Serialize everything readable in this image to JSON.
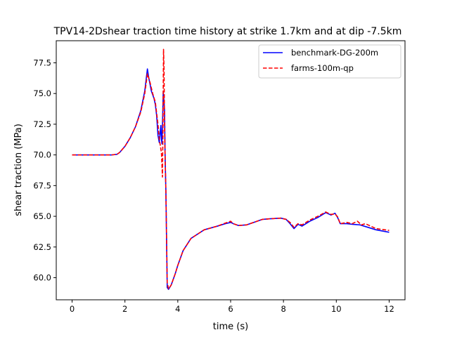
{
  "chart_data": {
    "type": "line",
    "title": "TPV14-2Dshear traction time history at strike 1.7km and at dip -7.5km",
    "xlabel": "time (s)",
    "ylabel": "shear traction (MPa)",
    "xlim": [
      -0.6,
      12.6
    ],
    "ylim": [
      58.2,
      79.3
    ],
    "xticks": [
      0,
      2,
      4,
      6,
      8,
      10,
      12
    ],
    "yticks": [
      60.0,
      62.5,
      65.0,
      67.5,
      70.0,
      72.5,
      75.0,
      77.5
    ],
    "xtick_labels": [
      "0",
      "2",
      "4",
      "6",
      "8",
      "10",
      "12"
    ],
    "ytick_labels": [
      "60.0",
      "62.5",
      "65.0",
      "67.5",
      "70.0",
      "72.5",
      "75.0",
      "77.5"
    ],
    "grid": false,
    "legend_position": "top-right",
    "series": [
      {
        "name": "benchmark-DG-200m",
        "color": "#0000ff",
        "dash": "solid",
        "points": [
          [
            0,
            70.0
          ],
          [
            1.0,
            70.0
          ],
          [
            1.5,
            70.0
          ],
          [
            1.7,
            70.05
          ],
          [
            1.8,
            70.2
          ],
          [
            2.0,
            70.7
          ],
          [
            2.2,
            71.4
          ],
          [
            2.4,
            72.3
          ],
          [
            2.6,
            73.6
          ],
          [
            2.75,
            75.2
          ],
          [
            2.85,
            77.0
          ],
          [
            2.9,
            76.3
          ],
          [
            3.0,
            75.2
          ],
          [
            3.1,
            74.6
          ],
          [
            3.15,
            74.1
          ],
          [
            3.2,
            73.2
          ],
          [
            3.25,
            71.6
          ],
          [
            3.3,
            71.0
          ],
          [
            3.33,
            71.8
          ],
          [
            3.36,
            72.4
          ],
          [
            3.38,
            71.3
          ],
          [
            3.4,
            70.9
          ],
          [
            3.42,
            72.3
          ],
          [
            3.45,
            75.2
          ],
          [
            3.48,
            74.3
          ],
          [
            3.5,
            73.6
          ],
          [
            3.52,
            69.8
          ],
          [
            3.55,
            67.0
          ],
          [
            3.6,
            59.2
          ],
          [
            3.65,
            59.05
          ],
          [
            3.75,
            59.4
          ],
          [
            3.9,
            60.3
          ],
          [
            4.0,
            61.0
          ],
          [
            4.2,
            62.2
          ],
          [
            4.5,
            63.2
          ],
          [
            5.0,
            63.9
          ],
          [
            5.5,
            64.2
          ],
          [
            5.8,
            64.4
          ],
          [
            6.0,
            64.5
          ],
          [
            6.1,
            64.4
          ],
          [
            6.3,
            64.25
          ],
          [
            6.6,
            64.3
          ],
          [
            7.0,
            64.6
          ],
          [
            7.2,
            64.75
          ],
          [
            7.5,
            64.8
          ],
          [
            7.9,
            64.85
          ],
          [
            8.1,
            64.75
          ],
          [
            8.25,
            64.4
          ],
          [
            8.4,
            64.0
          ],
          [
            8.55,
            64.35
          ],
          [
            8.7,
            64.2
          ],
          [
            9.0,
            64.6
          ],
          [
            9.3,
            64.9
          ],
          [
            9.6,
            65.3
          ],
          [
            9.8,
            65.1
          ],
          [
            9.95,
            65.25
          ],
          [
            10.05,
            64.9
          ],
          [
            10.15,
            64.4
          ],
          [
            10.4,
            64.4
          ],
          [
            10.6,
            64.35
          ],
          [
            10.9,
            64.3
          ],
          [
            11.2,
            64.1
          ],
          [
            11.5,
            63.9
          ],
          [
            12.0,
            63.7
          ]
        ]
      },
      {
        "name": "farms-100m-qp",
        "color": "#ff0000",
        "dash": "dashed",
        "points": [
          [
            0,
            70.0
          ],
          [
            1.0,
            70.0
          ],
          [
            1.5,
            70.0
          ],
          [
            1.7,
            70.05
          ],
          [
            1.8,
            70.2
          ],
          [
            2.0,
            70.7
          ],
          [
            2.2,
            71.4
          ],
          [
            2.4,
            72.3
          ],
          [
            2.6,
            73.5
          ],
          [
            2.75,
            75.0
          ],
          [
            2.85,
            76.6
          ],
          [
            2.95,
            75.9
          ],
          [
            3.05,
            75.0
          ],
          [
            3.15,
            74.3
          ],
          [
            3.25,
            72.5
          ],
          [
            3.3,
            71.3
          ],
          [
            3.35,
            70.6
          ],
          [
            3.38,
            70.2
          ],
          [
            3.42,
            68.2
          ],
          [
            3.44,
            72.5
          ],
          [
            3.46,
            78.6
          ],
          [
            3.48,
            77.0
          ],
          [
            3.5,
            72.0
          ],
          [
            3.55,
            67.0
          ],
          [
            3.6,
            59.6
          ],
          [
            3.65,
            59.1
          ],
          [
            3.75,
            59.4
          ],
          [
            3.9,
            60.3
          ],
          [
            4.0,
            61.0
          ],
          [
            4.2,
            62.2
          ],
          [
            4.5,
            63.2
          ],
          [
            5.0,
            63.9
          ],
          [
            5.5,
            64.2
          ],
          [
            5.8,
            64.45
          ],
          [
            6.0,
            64.6
          ],
          [
            6.1,
            64.4
          ],
          [
            6.3,
            64.25
          ],
          [
            6.6,
            64.3
          ],
          [
            7.0,
            64.6
          ],
          [
            7.2,
            64.75
          ],
          [
            7.5,
            64.8
          ],
          [
            7.9,
            64.85
          ],
          [
            8.1,
            64.75
          ],
          [
            8.25,
            64.5
          ],
          [
            8.4,
            64.1
          ],
          [
            8.55,
            64.4
          ],
          [
            8.7,
            64.3
          ],
          [
            9.0,
            64.7
          ],
          [
            9.3,
            65.0
          ],
          [
            9.6,
            65.35
          ],
          [
            9.8,
            65.15
          ],
          [
            9.95,
            65.2
          ],
          [
            10.05,
            64.95
          ],
          [
            10.15,
            64.4
          ],
          [
            10.4,
            64.5
          ],
          [
            10.6,
            64.4
          ],
          [
            10.8,
            64.6
          ],
          [
            10.95,
            64.3
          ],
          [
            11.1,
            64.4
          ],
          [
            11.2,
            64.3
          ],
          [
            11.5,
            64.0
          ],
          [
            12.0,
            63.85
          ]
        ]
      }
    ]
  }
}
